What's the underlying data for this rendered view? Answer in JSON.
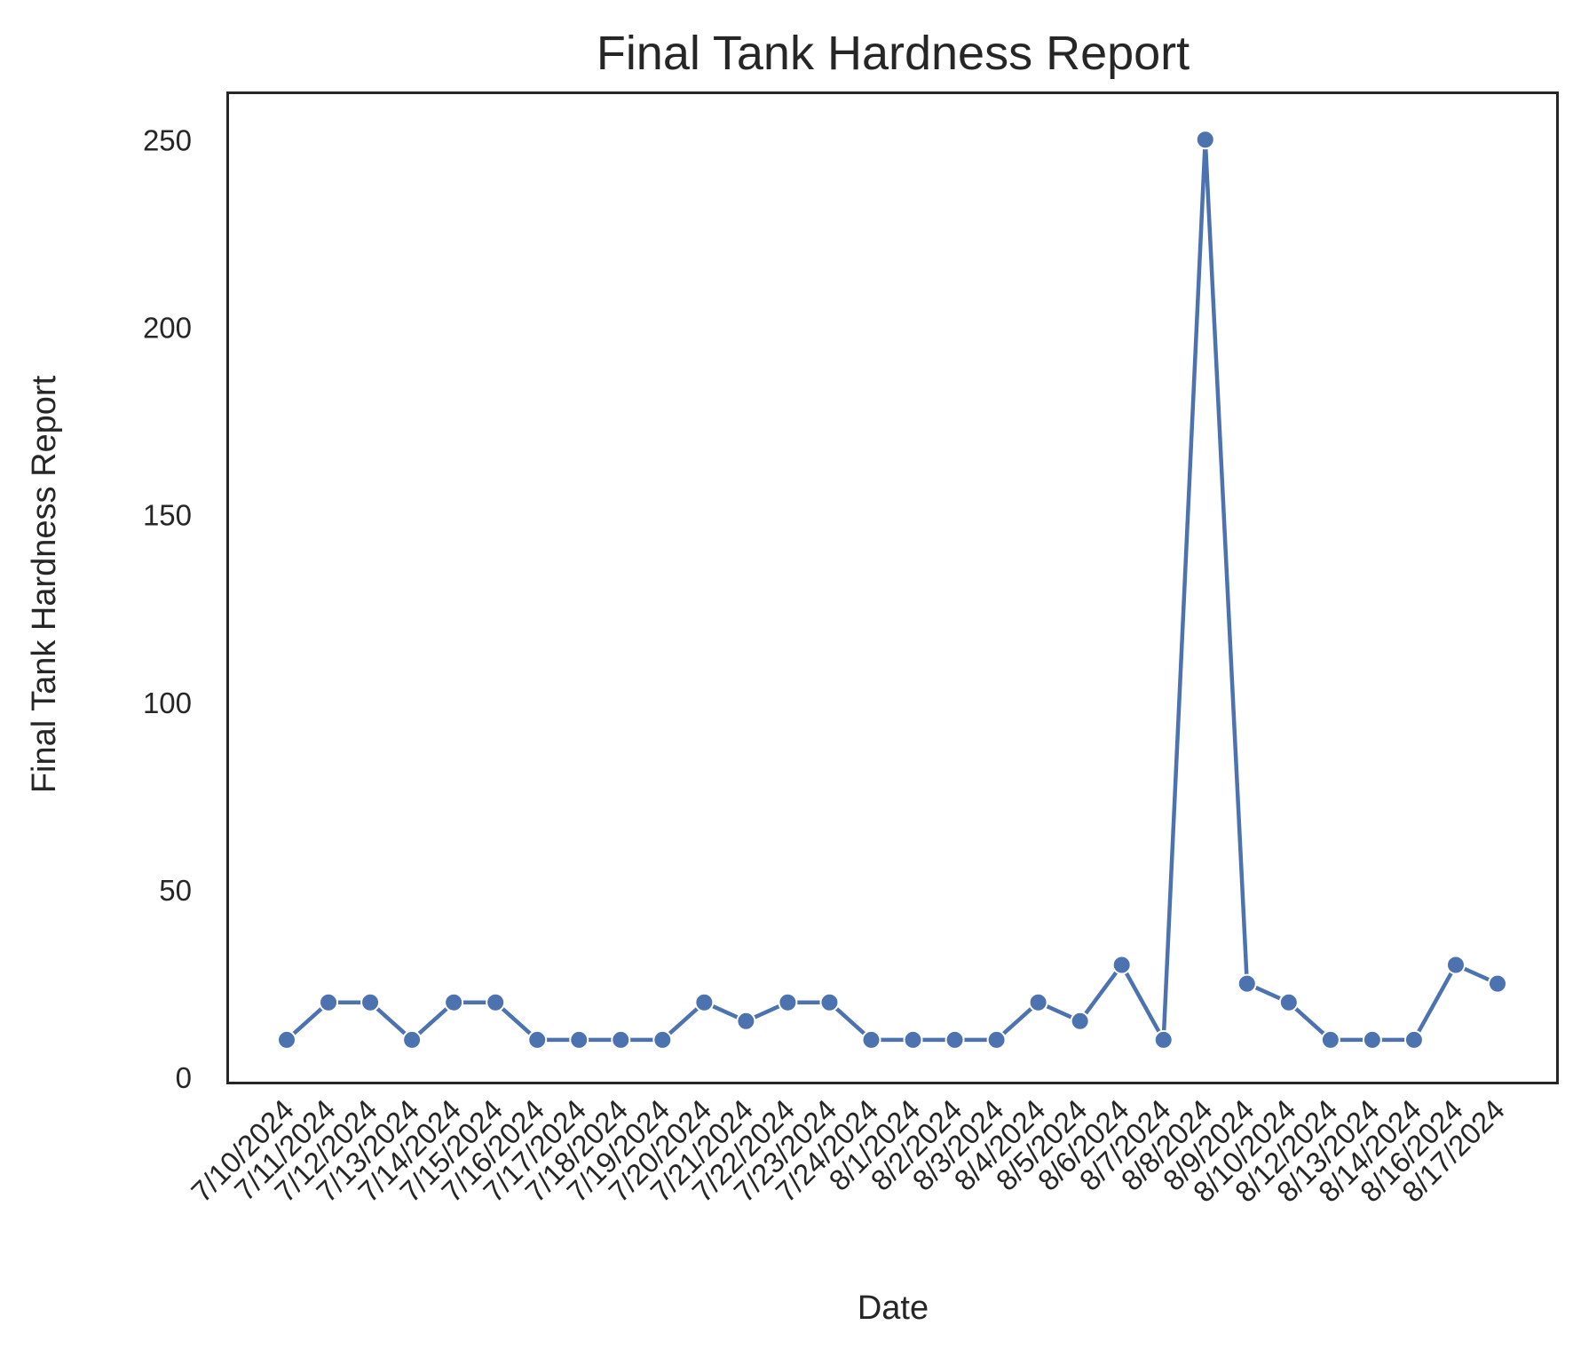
{
  "chart_data": {
    "type": "line",
    "title": "Final Tank Hardness Report",
    "xlabel": "Date",
    "ylabel": "Final Tank Hardness Report",
    "categories": [
      "7/10/2024",
      "7/11/2024",
      "7/12/2024",
      "7/13/2024",
      "7/14/2024",
      "7/15/2024",
      "7/16/2024",
      "7/17/2024",
      "7/18/2024",
      "7/19/2024",
      "7/20/2024",
      "7/21/2024",
      "7/22/2024",
      "7/23/2024",
      "7/24/2024",
      "8/1/2024",
      "8/2/2024",
      "8/3/2024",
      "8/4/2024",
      "8/5/2024",
      "8/6/2024",
      "8/7/2024",
      "8/8/2024",
      "8/9/2024",
      "8/10/2024",
      "8/12/2024",
      "8/13/2024",
      "8/14/2024",
      "8/16/2024",
      "8/17/2024"
    ],
    "values": [
      10,
      20,
      20,
      10,
      20,
      20,
      10,
      10,
      10,
      10,
      20,
      15,
      20,
      20,
      10,
      10,
      10,
      10,
      20,
      15,
      30,
      10,
      250,
      25,
      20,
      10,
      10,
      10,
      30,
      25
    ],
    "yticks": [
      0,
      50,
      100,
      150,
      200,
      250
    ],
    "ylim": [
      -1.5,
      262.5
    ],
    "grid": false,
    "legend": "none",
    "colors": {
      "line": "#4c72b0",
      "frame": "#262626",
      "text": "#262626"
    }
  }
}
